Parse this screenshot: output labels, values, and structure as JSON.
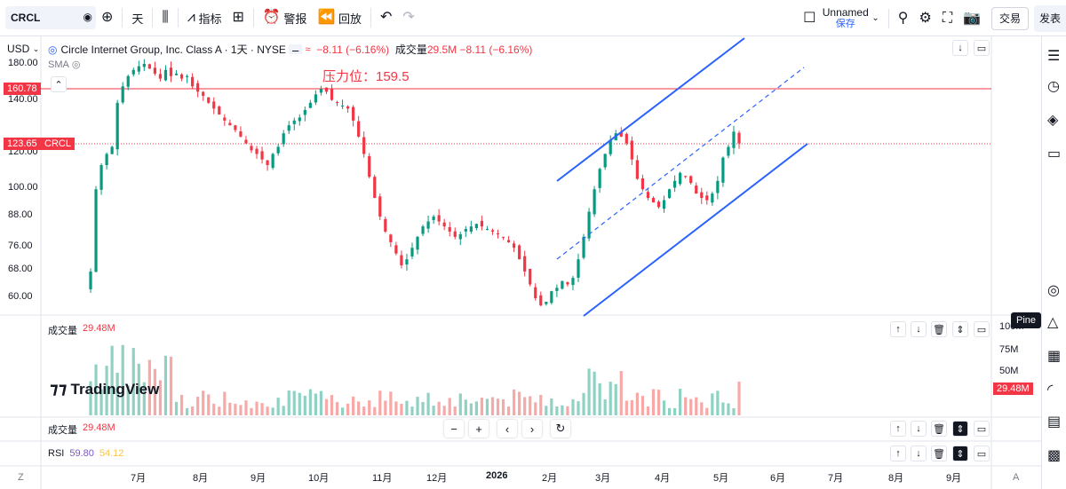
{
  "toolbar": {
    "symbol": "CRCL",
    "interval": "天",
    "indicators_label": "指标",
    "alert_label": "警报",
    "replay_label": "回放",
    "layout_name": "Unnamed",
    "layout_save": "保存",
    "trade_label": "交易",
    "publish_label": "发表"
  },
  "legend": {
    "title": "Circle Internet Group, Inc. Class A · 1天 · NYSE",
    "change": "−8.11 (−6.16%)",
    "volume_label": "成交量",
    "volume_value": "29.5M",
    "volume_change": "−8.11 (−6.16%)",
    "sma_label": "SMA",
    "currency": "USD"
  },
  "annotation": {
    "resistance_text": "压力位：159.5"
  },
  "price_axis": {
    "ticks": [
      "180.00",
      "160.00",
      "140.00",
      "120.00",
      "100.00",
      "88.00",
      "76.00",
      "68.00",
      "60.00"
    ],
    "resistance_tag": "160.78",
    "last_price_tag": "123.65",
    "symbol_tag": "CRCL"
  },
  "volume_pane": {
    "label": "成交量",
    "value": "29.48M",
    "ticks": [
      "100M",
      "75M",
      "50M"
    ],
    "last_tag": "29.48M"
  },
  "volume_pane2": {
    "label": "成交量",
    "value": "29.48M"
  },
  "rsi_pane": {
    "label": "RSI",
    "value1": "59.80",
    "value2": "54.12"
  },
  "time_axis": {
    "labels": [
      "7月",
      "8月",
      "9月",
      "10月",
      "11月",
      "12月",
      "2026",
      "2月",
      "3月",
      "4月",
      "5月",
      "6月",
      "7月",
      "8月",
      "9月"
    ]
  },
  "branding": {
    "logo_text": "TradingView"
  },
  "tooltip": {
    "pine": "Pine"
  },
  "colors": {
    "up": "#089981",
    "down": "#f23645",
    "channel": "#2962ff",
    "resistance": "#f23645"
  },
  "chart_data": {
    "type": "candlestick",
    "title": "Circle Internet Group, Inc. Class A · 1天 · NYSE",
    "ylim": [
      55,
      190
    ],
    "resistance": 159.5,
    "last": 123.65,
    "closes": [
      68,
      100,
      112,
      118,
      122,
      150,
      162,
      170,
      175,
      178,
      180,
      176,
      172,
      168,
      175,
      170,
      172,
      168,
      170,
      162,
      158,
      155,
      150,
      146,
      142,
      138,
      135,
      132,
      128,
      124,
      120,
      118,
      115,
      112,
      118,
      122,
      130,
      135,
      138,
      140,
      145,
      150,
      156,
      160,
      158,
      152,
      150,
      148,
      146,
      138,
      128,
      118,
      106,
      96,
      88,
      82,
      78,
      74,
      70,
      72,
      76,
      80,
      84,
      86,
      88,
      86,
      84,
      82,
      80,
      81,
      83,
      84,
      85,
      84,
      83,
      82,
      81,
      80,
      78,
      76,
      72,
      68,
      64,
      60,
      58,
      59,
      62,
      63,
      65,
      64,
      66,
      72,
      80,
      90,
      100,
      110,
      118,
      126,
      130,
      128,
      124,
      115,
      105,
      100,
      96,
      94,
      92,
      95,
      100,
      104,
      108,
      106,
      103,
      98,
      96,
      95,
      98,
      104,
      116,
      122,
      131,
      124
    ]
  }
}
